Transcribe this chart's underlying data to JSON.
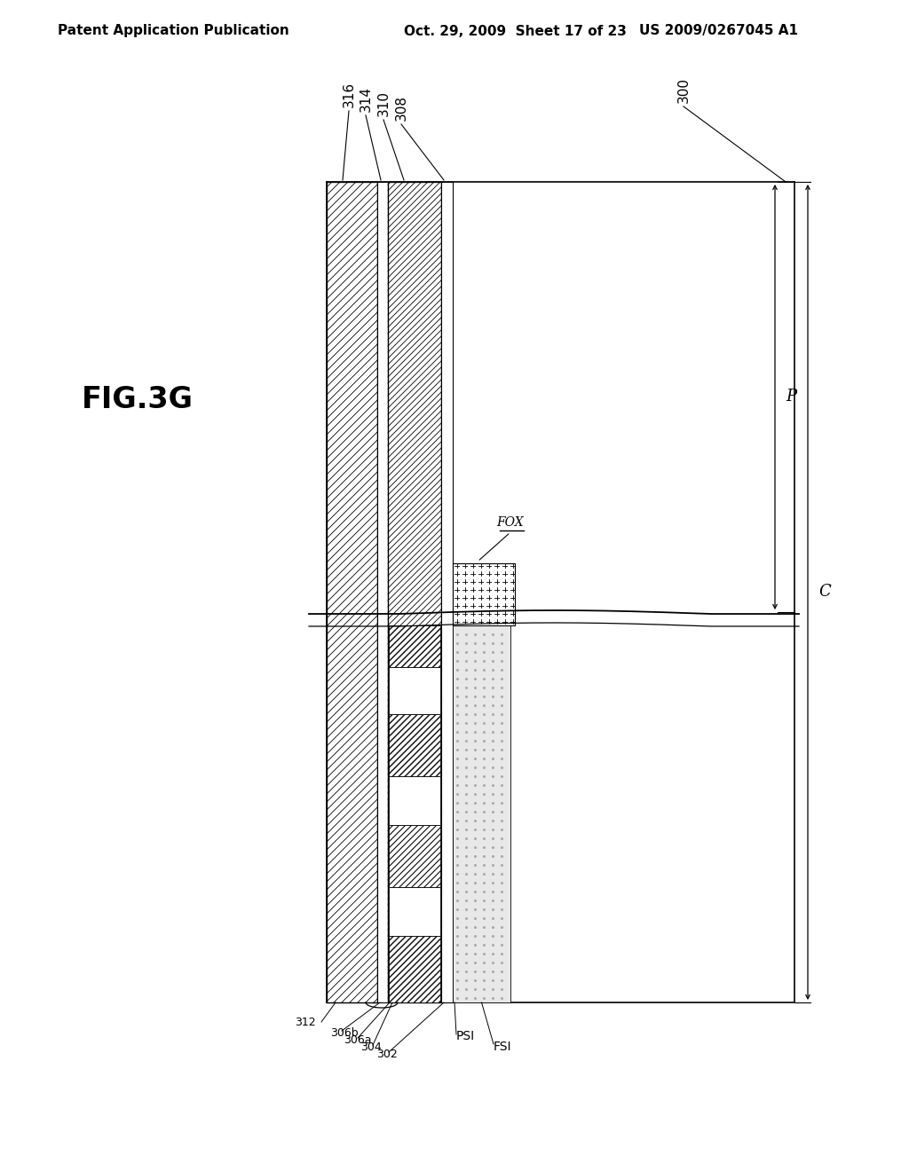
{
  "header_left": "Patent Application Publication",
  "header_mid": "Oct. 29, 2009  Sheet 17 of 23",
  "header_right": "US 2009/0267045 A1",
  "fig_label": "FIG.3G",
  "label_316": "316",
  "label_314": "314",
  "label_310": "310",
  "label_308": "308",
  "label_300": "300",
  "label_FOX": "FOX",
  "label_P": "P",
  "label_C": "C",
  "label_306b": "306b",
  "label_306a": "306a",
  "label_304": "304",
  "label_302": "302",
  "label_PSI": "PSI",
  "label_FSI": "FSI",
  "label_312": "312",
  "bg_color": "#ffffff",
  "line_color": "#000000"
}
